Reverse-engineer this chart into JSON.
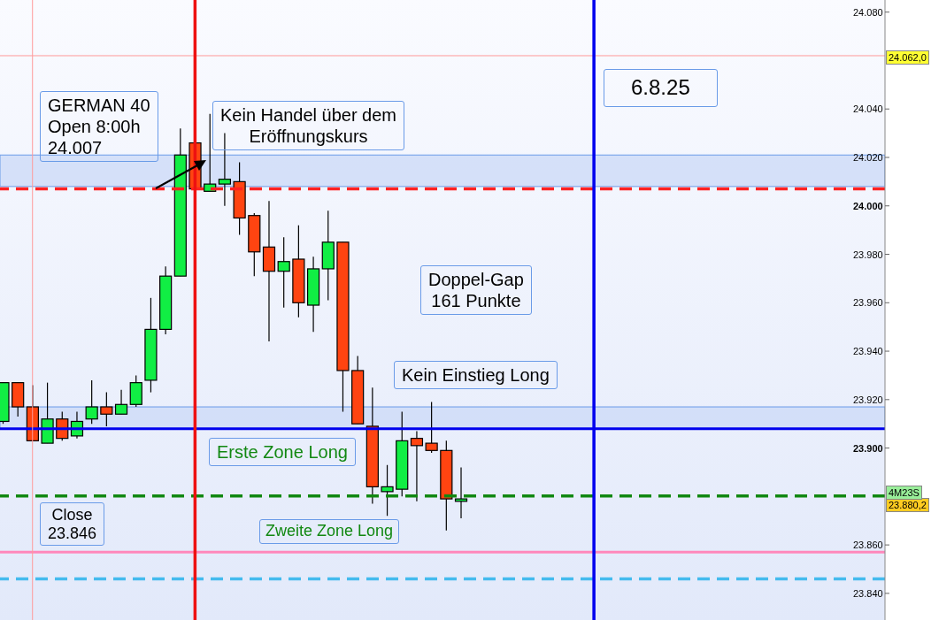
{
  "chart_data": {
    "type": "candlestick",
    "categories": [
      null,
      null,
      null,
      null,
      null,
      null,
      null,
      null,
      null,
      null,
      null,
      null,
      null,
      null,
      null,
      null,
      null,
      null,
      null,
      null,
      null,
      null,
      null,
      null,
      null,
      null,
      null,
      null,
      null,
      null,
      null,
      null,
      null,
      null,
      null,
      null,
      null,
      null,
      null,
      null,
      null,
      null,
      null,
      null,
      null,
      null,
      null,
      null,
      null,
      null,
      null,
      null,
      null,
      null,
      null,
      null,
      null,
      null,
      null,
      null
    ],
    "ohlc": [
      [
        23911,
        23927,
        23910,
        23927
      ],
      [
        23927,
        23927,
        23913,
        23917
      ],
      [
        23917,
        23926,
        23903,
        23903
      ],
      [
        23902,
        23927,
        23902,
        23912
      ],
      [
        23912,
        23915,
        23903,
        23904
      ],
      [
        23905,
        23915,
        23904,
        23911
      ],
      [
        23912,
        23928,
        23910,
        23917
      ],
      [
        23917,
        23923,
        23909,
        23914
      ],
      [
        23914,
        23924,
        23914,
        23918
      ],
      [
        23918,
        23930,
        23917,
        23927
      ],
      [
        23928,
        23962,
        23923,
        23949
      ],
      [
        23949,
        23975,
        23947,
        23971
      ],
      [
        23971,
        24032,
        23971,
        24021
      ],
      [
        24026,
        24026,
        24007,
        24007
      ],
      [
        24006,
        24038,
        24006,
        24009
      ],
      [
        24009,
        24030,
        24000,
        24011
      ],
      [
        24010,
        24018,
        23988,
        23995
      ],
      [
        23996,
        23997,
        23971,
        23981
      ],
      [
        23983,
        24002,
        23944,
        23973
      ],
      [
        23973,
        23987,
        23958,
        23977
      ],
      [
        23978,
        23992,
        23954,
        23960
      ],
      [
        23959,
        23979,
        23948,
        23974
      ],
      [
        23974,
        23998,
        23961,
        23985
      ],
      [
        23985,
        23985,
        23915,
        23932
      ],
      [
        23932,
        23938,
        23910,
        23910
      ],
      [
        23909,
        23925,
        23877,
        23884
      ],
      [
        23882,
        23893,
        23872,
        23884
      ],
      [
        23883,
        23915,
        23880,
        23903
      ],
      [
        23904,
        23907,
        23878,
        23901
      ],
      [
        23902,
        23919,
        23898,
        23899
      ],
      [
        23899,
        23903,
        23866,
        23879
      ],
      [
        23878,
        23892,
        23871,
        23879
      ],
      null,
      null,
      null,
      null,
      null,
      null,
      null,
      null,
      null,
      null,
      null,
      null,
      null,
      null,
      null,
      null,
      null,
      null,
      null,
      null,
      null,
      null,
      null,
      null,
      null,
      null,
      null,
      null
    ],
    "colors": [
      "#11ee44",
      "#ff4411",
      "#ff4411",
      "#11ee44",
      "#ff4411",
      "#11ee44",
      "#11ee44",
      "#ff4411",
      "#11ee44",
      "#11ee44",
      "#11ee44",
      "#11ee44",
      "#11ee44",
      "#ff4411",
      "#11ee44",
      "#11ee44",
      "#ff4411",
      "#ff4411",
      "#ff4411",
      "#11ee44",
      "#ff4411",
      "#11ee44",
      "#11ee44",
      "#ff4411",
      "#ff4411",
      "#ff4411",
      "#11ee44",
      "#11ee44",
      "#ff4411",
      "#ff4411",
      "#ff4411",
      "#11ee44",
      null,
      null,
      null,
      null,
      null,
      null,
      null,
      null,
      null,
      null,
      null,
      null,
      null,
      null,
      null,
      null,
      null,
      null,
      null,
      null,
      null,
      null,
      null,
      null,
      null,
      null,
      null,
      null
    ],
    "ylim": [
      23829,
      24085
    ],
    "yticks": [
      {
        "value": 23840,
        "label": "23.840"
      },
      {
        "value": 23860,
        "label": "23.860"
      },
      {
        "value": 23900,
        "label": "23.900"
      },
      {
        "value": 23920,
        "label": "23.920"
      },
      {
        "value": 23940,
        "label": "23.940"
      },
      {
        "value": 23960,
        "label": "23.960"
      },
      {
        "value": 23980,
        "label": "23.980"
      },
      {
        "value": 24000,
        "label": "24.000"
      },
      {
        "value": 24020,
        "label": "24.020"
      },
      {
        "value": 24040,
        "label": "24.040"
      },
      {
        "value": 24080,
        "label": "24.080"
      }
    ],
    "tick_labels": "y",
    "ref_lines": [
      {
        "axis": "y",
        "value": 24062,
        "label": "24.062,0",
        "color": "#ff9999",
        "line_style": "solid"
      },
      {
        "axis": "y",
        "value": 24007,
        "label": "GERMAN 40\nOpen 8:00h\n24.007",
        "color": "#ff2222",
        "line_style": "dashed"
      },
      {
        "axis": "y",
        "value": 23908,
        "label": "Erste Zone Long",
        "color": "#0000ee",
        "line_style": "solid"
      },
      {
        "axis": "y",
        "value": 23880.2,
        "label": "23.880,2",
        "color": "#118811",
        "line_style": "dashed"
      },
      {
        "axis": "y",
        "value": 23857,
        "label": "Zweite  Zone Long",
        "color": "#ff88bb",
        "line_style": "solid"
      },
      {
        "axis": "y",
        "value": 23846,
        "label": "Close\n23.846",
        "color": "#44bbee",
        "line_style": "dashed"
      }
    ],
    "bands": [
      {
        "axis": "y",
        "from": 24008,
        "to": 24021,
        "label": "Kein Handel über dem\nEröffnungskurs",
        "color": "#cddbf7"
      },
      {
        "axis": "y",
        "from": 23908,
        "to": 23917,
        "label": "Kein Einstieg Long",
        "color": "#cddbf7"
      }
    ],
    "annotations": [
      "Doppel-Gap\n161 Punkte",
      "4M23S",
      "6.8.25"
    ]
  }
}
